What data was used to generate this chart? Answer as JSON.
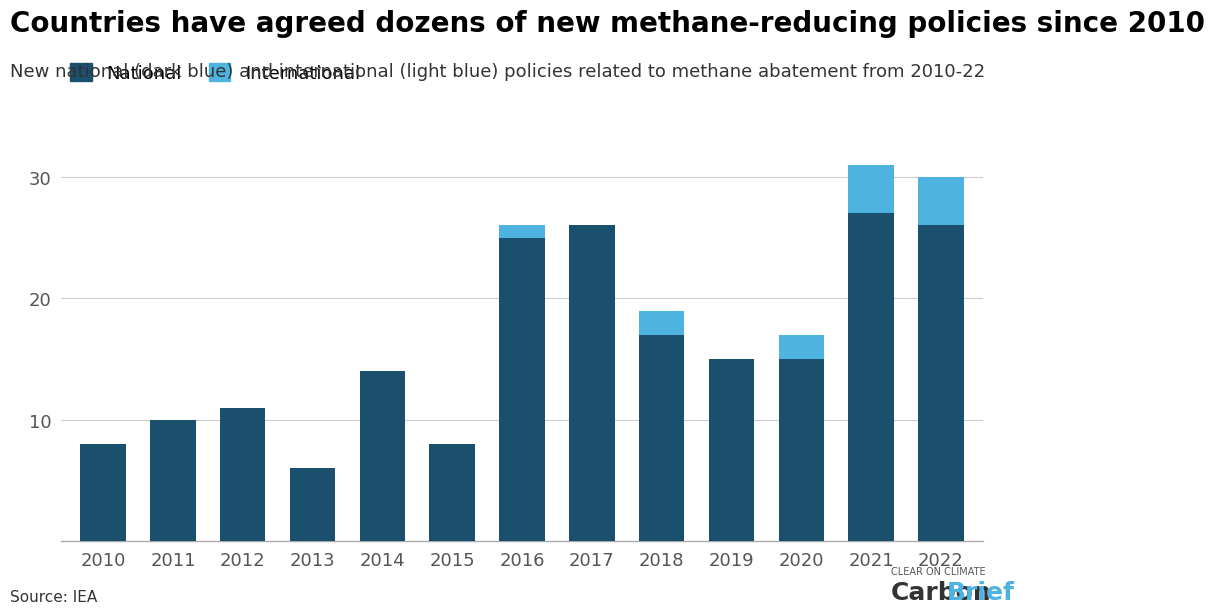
{
  "title": "Countries have agreed dozens of new methane-reducing policies since 2010",
  "subtitle": "New national (dark blue) and international (light blue) policies related to methane abatement from 2010-22",
  "source": "Source: IEA",
  "years": [
    2010,
    2011,
    2012,
    2013,
    2014,
    2015,
    2016,
    2017,
    2018,
    2019,
    2020,
    2021,
    2022
  ],
  "national": [
    8,
    10,
    11,
    6,
    14,
    8,
    25,
    26,
    17,
    15,
    15,
    27,
    26
  ],
  "international": [
    0,
    0,
    0,
    0,
    0,
    0,
    1,
    0,
    2,
    0,
    2,
    4,
    4
  ],
  "national_color": "#1a4f6e",
  "international_color": "#4eb3e0",
  "background_color": "#ffffff",
  "grid_color": "#cccccc",
  "yticks": [
    10,
    20,
    30
  ],
  "ylim": [
    0,
    34
  ],
  "legend_national": "National",
  "legend_international": "International",
  "title_fontsize": 20,
  "subtitle_fontsize": 13,
  "source_fontsize": 11,
  "tick_fontsize": 13,
  "legend_fontsize": 13,
  "carbonbrief_text": "CarbonBrief",
  "carbonbrief_subtext": "CLEAR ON CLIMATE"
}
